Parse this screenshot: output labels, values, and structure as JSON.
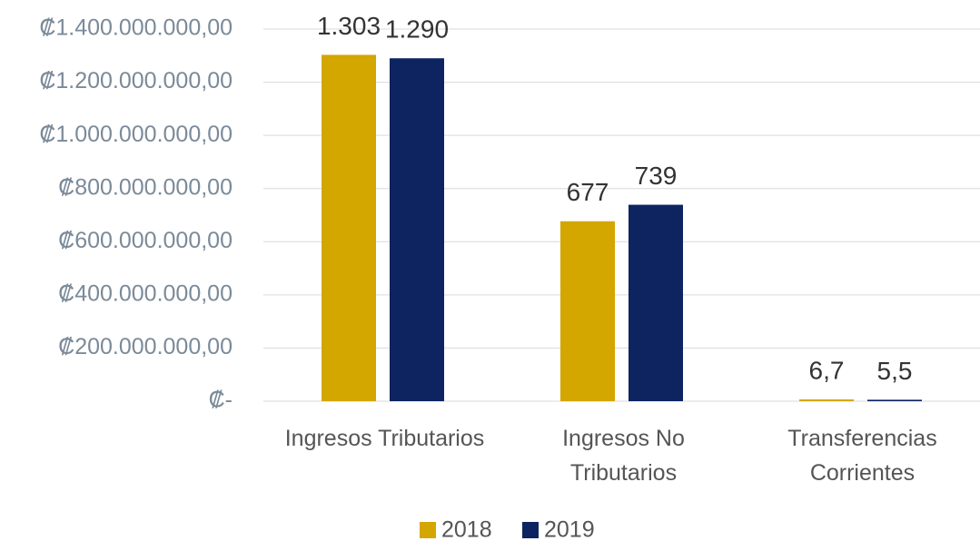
{
  "chart_data": {
    "type": "bar",
    "categories": [
      "Ingresos Tributarios",
      "Ingresos No\nTributarios",
      "Transferencias\nCorrientes"
    ],
    "series": [
      {
        "name": "2018",
        "color": "#d4a600",
        "values": [
          1303000000,
          677000000,
          6700000
        ],
        "value_labels": [
          "1.303",
          "677",
          "6,7"
        ]
      },
      {
        "name": "2019",
        "color": "#0d2461",
        "values": [
          1290000000,
          739000000,
          5500000
        ],
        "value_labels": [
          "1.290",
          "739",
          "5,5"
        ]
      }
    ],
    "ylim": [
      0,
      1400000000
    ],
    "yticks": [
      {
        "value": 0,
        "label": "₡-"
      },
      {
        "value": 200000000,
        "label": "₡200.000.000,00"
      },
      {
        "value": 400000000,
        "label": "₡400.000.000,00"
      },
      {
        "value": 600000000,
        "label": "₡600.000.000,00"
      },
      {
        "value": 800000000,
        "label": "₡800.000.000,00"
      },
      {
        "value": 1000000000,
        "label": "₡1.000.000.000,00"
      },
      {
        "value": 1200000000,
        "label": "₡1.200.000.000,00"
      },
      {
        "value": 1400000000,
        "label": "₡1.400.000.000,00"
      }
    ],
    "grid": true,
    "legend": "bottom"
  }
}
